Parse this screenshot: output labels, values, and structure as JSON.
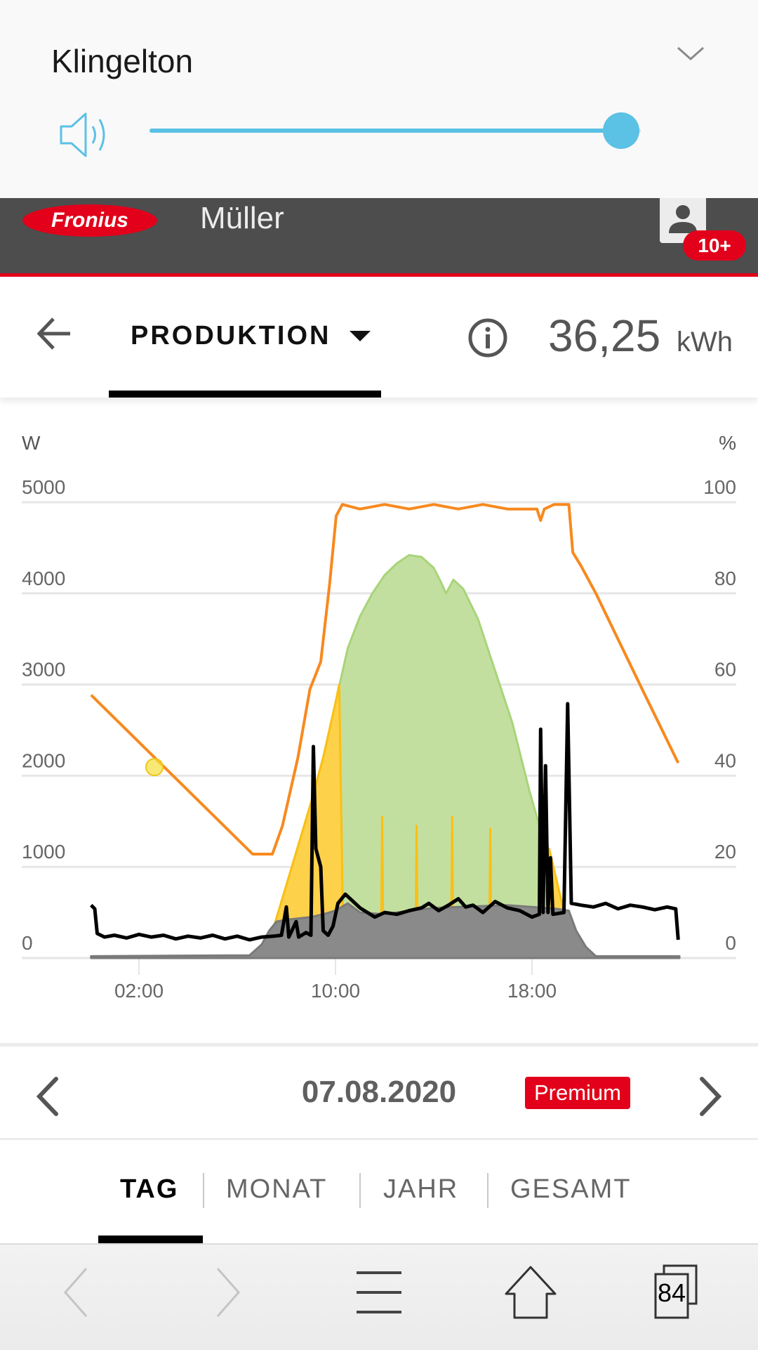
{
  "volume_panel": {
    "title": "Klingelton",
    "level_percent": 96,
    "accent": "#5bc1e5"
  },
  "header": {
    "logo_text": "Fronius",
    "user_name": "Müller",
    "notification_badge": "10+",
    "brand_red": "#e2001a"
  },
  "toolbar": {
    "view_label": "PRODUKTION",
    "total_value": "36,25",
    "total_unit": "kWh"
  },
  "chart_data": {
    "type": "area",
    "left_axis_unit": "W",
    "right_axis_unit": "%",
    "y_left": {
      "ylim": [
        0,
        5000
      ],
      "ticks": [
        "0",
        "1000",
        "2000",
        "3000",
        "4000",
        "5000"
      ]
    },
    "y_right": {
      "ylim": [
        0,
        100
      ],
      "ticks": [
        "0",
        "20",
        "40",
        "60",
        "80",
        "100"
      ]
    },
    "x": {
      "range_hours": [
        0,
        24
      ],
      "ticks": [
        {
          "h": 2,
          "label": "02:00"
        },
        {
          "h": 10,
          "label": "10:00"
        },
        {
          "h": 18,
          "label": "18:00"
        }
      ]
    },
    "grid": true,
    "series": [
      {
        "kind": "area",
        "axis": "left",
        "color": "#c3df9f",
        "stroke": "#a8d47a",
        "points": [
          [
            6.9,
            0
          ],
          [
            7.5,
            350
          ],
          [
            8,
            800
          ],
          [
            8.5,
            1250
          ],
          [
            9,
            1700
          ],
          [
            9.5,
            2200
          ],
          [
            10,
            2800
          ],
          [
            10.5,
            3400
          ],
          [
            11,
            3750
          ],
          [
            11.5,
            4000
          ],
          [
            12,
            4200
          ],
          [
            12.5,
            4330
          ],
          [
            13,
            4420
          ],
          [
            13.5,
            4400
          ],
          [
            14,
            4280
          ],
          [
            14.3,
            4120
          ],
          [
            14.5,
            4000
          ],
          [
            14.8,
            4150
          ],
          [
            15.2,
            4050
          ],
          [
            15.8,
            3720
          ],
          [
            16.5,
            3150
          ],
          [
            17.2,
            2580
          ],
          [
            17.9,
            1830
          ],
          [
            18.6,
            1170
          ],
          [
            19.3,
            510
          ],
          [
            19.8,
            85
          ],
          [
            20.2,
            0
          ]
        ]
      },
      {
        "kind": "area",
        "axis": "left",
        "color": "#fed14a",
        "stroke": "#fbbf14",
        "points": [
          [
            6.7,
            0
          ],
          [
            7,
            80
          ],
          [
            7.5,
            350
          ],
          [
            8,
            800
          ],
          [
            8.5,
            1250
          ],
          [
            9,
            1700
          ],
          [
            9.5,
            2200
          ],
          [
            10,
            2800
          ],
          [
            10.15,
            3000
          ],
          [
            10.3,
            500
          ],
          [
            10.4,
            0
          ],
          [
            11.85,
            0
          ],
          [
            11.9,
            1550
          ],
          [
            11.95,
            0
          ],
          [
            13.25,
            0
          ],
          [
            13.3,
            1450
          ],
          [
            13.35,
            0
          ],
          [
            14.7,
            0
          ],
          [
            14.75,
            1550
          ],
          [
            14.8,
            0
          ],
          [
            16.25,
            0
          ],
          [
            16.3,
            1420
          ],
          [
            16.35,
            0
          ],
          [
            18.6,
            0
          ],
          [
            18.7,
            1200
          ],
          [
            19.3,
            510
          ],
          [
            19.8,
            85
          ],
          [
            20.2,
            0
          ]
        ]
      },
      {
        "kind": "area",
        "axis": "left",
        "color": "#8a8a8b",
        "stroke": "#7a7a7a",
        "points": [
          [
            0.05,
            20
          ],
          [
            6.5,
            30
          ],
          [
            7,
            150
          ],
          [
            7.3,
            300
          ],
          [
            7.6,
            400
          ],
          [
            8,
            420
          ],
          [
            9,
            450
          ],
          [
            9.5,
            480
          ],
          [
            10,
            520
          ],
          [
            10.5,
            600
          ],
          [
            11,
            500
          ],
          [
            12,
            480
          ],
          [
            13,
            520
          ],
          [
            14,
            550
          ],
          [
            15,
            560
          ],
          [
            16,
            570
          ],
          [
            17,
            580
          ],
          [
            18,
            560
          ],
          [
            19,
            540
          ],
          [
            19.5,
            520
          ],
          [
            19.8,
            300
          ],
          [
            20.2,
            120
          ],
          [
            20.6,
            20
          ],
          [
            24,
            20
          ]
        ]
      },
      {
        "kind": "line",
        "axis": "left",
        "color": "#000000",
        "points": [
          [
            0.05,
            580
          ],
          [
            0.2,
            540
          ],
          [
            0.3,
            270
          ],
          [
            0.6,
            230
          ],
          [
            1,
            250
          ],
          [
            1.5,
            220
          ],
          [
            2,
            260
          ],
          [
            2.5,
            230
          ],
          [
            3,
            250
          ],
          [
            3.5,
            210
          ],
          [
            4,
            240
          ],
          [
            4.5,
            220
          ],
          [
            5,
            250
          ],
          [
            5.5,
            210
          ],
          [
            6,
            240
          ],
          [
            6.5,
            200
          ],
          [
            7,
            230
          ],
          [
            7.5,
            240
          ],
          [
            7.8,
            250
          ],
          [
            8,
            560
          ],
          [
            8.1,
            230
          ],
          [
            8.4,
            400
          ],
          [
            8.5,
            230
          ],
          [
            8.8,
            280
          ],
          [
            9.0,
            250
          ],
          [
            9.1,
            2320
          ],
          [
            9.2,
            1200
          ],
          [
            9.3,
            1100
          ],
          [
            9.4,
            1000
          ],
          [
            9.5,
            300
          ],
          [
            9.7,
            250
          ],
          [
            9.9,
            350
          ],
          [
            10.1,
            600
          ],
          [
            10.4,
            700
          ],
          [
            10.8,
            600
          ],
          [
            11,
            550
          ],
          [
            11.3,
            500
          ],
          [
            11.6,
            450
          ],
          [
            12,
            500
          ],
          [
            12.5,
            480
          ],
          [
            13,
            520
          ],
          [
            13.5,
            550
          ],
          [
            13.8,
            600
          ],
          [
            14.2,
            520
          ],
          [
            14.6,
            580
          ],
          [
            15,
            650
          ],
          [
            15.3,
            560
          ],
          [
            15.6,
            580
          ],
          [
            16,
            500
          ],
          [
            16.5,
            620
          ],
          [
            17,
            550
          ],
          [
            17.5,
            520
          ],
          [
            18,
            450
          ],
          [
            18.3,
            480
          ],
          [
            18.35,
            2510
          ],
          [
            18.45,
            500
          ],
          [
            18.55,
            2110
          ],
          [
            18.65,
            500
          ],
          [
            18.75,
            1100
          ],
          [
            18.85,
            480
          ],
          [
            19.3,
            500
          ],
          [
            19.45,
            2790
          ],
          [
            19.6,
            600
          ],
          [
            20,
            580
          ],
          [
            20.5,
            560
          ],
          [
            21,
            600
          ],
          [
            21.5,
            540
          ],
          [
            22,
            580
          ],
          [
            22.5,
            560
          ],
          [
            23,
            530
          ],
          [
            23.5,
            560
          ],
          [
            23.85,
            540
          ],
          [
            23.95,
            200
          ]
        ]
      },
      {
        "kind": "line",
        "axis": "right",
        "color": "#f7891f",
        "points": [
          [
            0.05,
            57.7
          ],
          [
            6.63,
            22.8
          ],
          [
            7.43,
            22.8
          ],
          [
            7.84,
            29
          ],
          [
            8.47,
            44
          ],
          [
            8.96,
            59
          ],
          [
            9.4,
            65
          ],
          [
            9.76,
            82
          ],
          [
            10.03,
            97
          ],
          [
            10.28,
            99.5
          ],
          [
            11,
            98.5
          ],
          [
            12,
            99.5
          ],
          [
            13,
            98.5
          ],
          [
            14,
            99.5
          ],
          [
            15,
            98.5
          ],
          [
            16,
            99.5
          ],
          [
            17,
            98.5
          ],
          [
            18.2,
            98.5
          ],
          [
            18.35,
            96
          ],
          [
            18.5,
            98.5
          ],
          [
            18.9,
            99.5
          ],
          [
            19.5,
            99.5
          ],
          [
            19.66,
            89
          ],
          [
            20,
            86
          ],
          [
            20.6,
            80
          ],
          [
            22.6,
            57.7
          ],
          [
            23.95,
            42.8
          ]
        ]
      }
    ],
    "highlight_point": {
      "h": 2.63,
      "value": 41.9,
      "axis": "right",
      "color": "#f5e03a"
    }
  },
  "date_nav": {
    "date": "07.08.2020",
    "badge": "Premium"
  },
  "period_tabs": [
    {
      "label": "TAG",
      "active": true
    },
    {
      "label": "MONAT",
      "active": false
    },
    {
      "label": "JAHR",
      "active": false
    },
    {
      "label": "GESAMT",
      "active": false
    }
  ],
  "browser_nav": {
    "tab_count": "84"
  }
}
